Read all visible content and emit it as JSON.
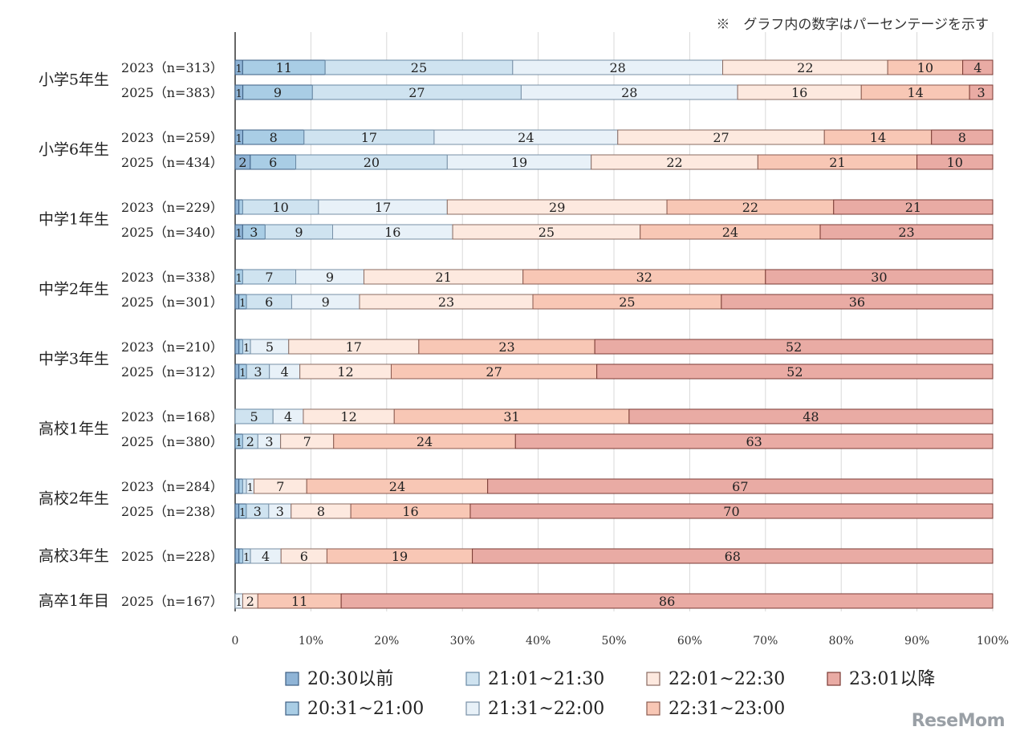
{
  "note": "※　グラフ内の数字はパーセンテージを示す",
  "logo": "ReseMom",
  "colors": [
    "#8fb4d6",
    "#a9cde5",
    "#cfe3f0",
    "#e8f1f8",
    "#fde9df",
    "#f8c7b5",
    "#e9aba4"
  ],
  "chart_data": {
    "type": "bar",
    "orientation": "horizontal",
    "stacked": "100%",
    "xlim": [
      0,
      100
    ],
    "xticks": [
      "0",
      "10%",
      "20%",
      "30%",
      "40%",
      "50%",
      "60%",
      "70%",
      "80%",
      "90%",
      "100%"
    ],
    "grid": true,
    "legend_position": "bottom",
    "series": [
      {
        "name": "20:30以前"
      },
      {
        "name": "20:31~21:00"
      },
      {
        "name": "21:01~21:30"
      },
      {
        "name": "21:31~22:00"
      },
      {
        "name": "22:01~22:30"
      },
      {
        "name": "22:31~23:00"
      },
      {
        "name": "23:01以降"
      }
    ],
    "groups": [
      {
        "label": "小学5年生",
        "rows": [
          {
            "label": "2023（n=313）",
            "values": [
              1,
              11,
              25,
              28,
              22,
              10,
              4
            ]
          },
          {
            "label": "2025（n=383）",
            "values": [
              1,
              9,
              27,
              28,
              16,
              14,
              3
            ]
          }
        ]
      },
      {
        "label": "小学6年生",
        "rows": [
          {
            "label": "2023（n=259）",
            "values": [
              1,
              8,
              17,
              24,
              27,
              14,
              8
            ]
          },
          {
            "label": "2025（n=434）",
            "values": [
              2,
              6,
              20,
              19,
              22,
              21,
              10
            ]
          }
        ]
      },
      {
        "label": "中学1年生",
        "rows": [
          {
            "label": "2023（n=229）",
            "values": [
              0.5,
              0.5,
              10,
              17,
              29,
              22,
              21
            ]
          },
          {
            "label": "2025（n=340）",
            "values": [
              1,
              3,
              9,
              16,
              25,
              24,
              23
            ]
          }
        ]
      },
      {
        "label": "中学2年生",
        "rows": [
          {
            "label": "2023（n=338）",
            "values": [
              0,
              1,
              7,
              9,
              21,
              32,
              30
            ]
          },
          {
            "label": "2025（n=301）",
            "values": [
              0.5,
              1,
              6,
              9,
              23,
              25,
              36
            ]
          }
        ]
      },
      {
        "label": "中学3年生",
        "rows": [
          {
            "label": "2023（n=210）",
            "values": [
              0.5,
              0.5,
              1,
              5,
              17,
              23,
              52
            ]
          },
          {
            "label": "2025（n=312）",
            "values": [
              0.5,
              1,
              3,
              4,
              12,
              27,
              52
            ]
          }
        ]
      },
      {
        "label": "高校1年生",
        "rows": [
          {
            "label": "2023（n=168）",
            "values": [
              0,
              0,
              5,
              4,
              12,
              31,
              48
            ]
          },
          {
            "label": "2025（n=380）",
            "values": [
              0,
              1,
              2,
              3,
              7,
              24,
              63
            ]
          }
        ]
      },
      {
        "label": "高校2年生",
        "rows": [
          {
            "label": "2023（n=284）",
            "values": [
              0.5,
              0.5,
              0.5,
              1,
              7,
              24,
              67
            ]
          },
          {
            "label": "2025（n=238）",
            "values": [
              0.5,
              1,
              3,
              3,
              8,
              16,
              70
            ]
          }
        ]
      },
      {
        "label": "高校3年生",
        "rows": [
          {
            "label": "2025（n=228）",
            "values": [
              0.5,
              0.5,
              1,
              4,
              6,
              19,
              68
            ]
          }
        ]
      },
      {
        "label": "高卒1年目",
        "rows": [
          {
            "label": "2025（n=167）",
            "values": [
              0,
              0,
              0,
              1,
              2,
              11,
              86
            ]
          }
        ]
      }
    ]
  }
}
